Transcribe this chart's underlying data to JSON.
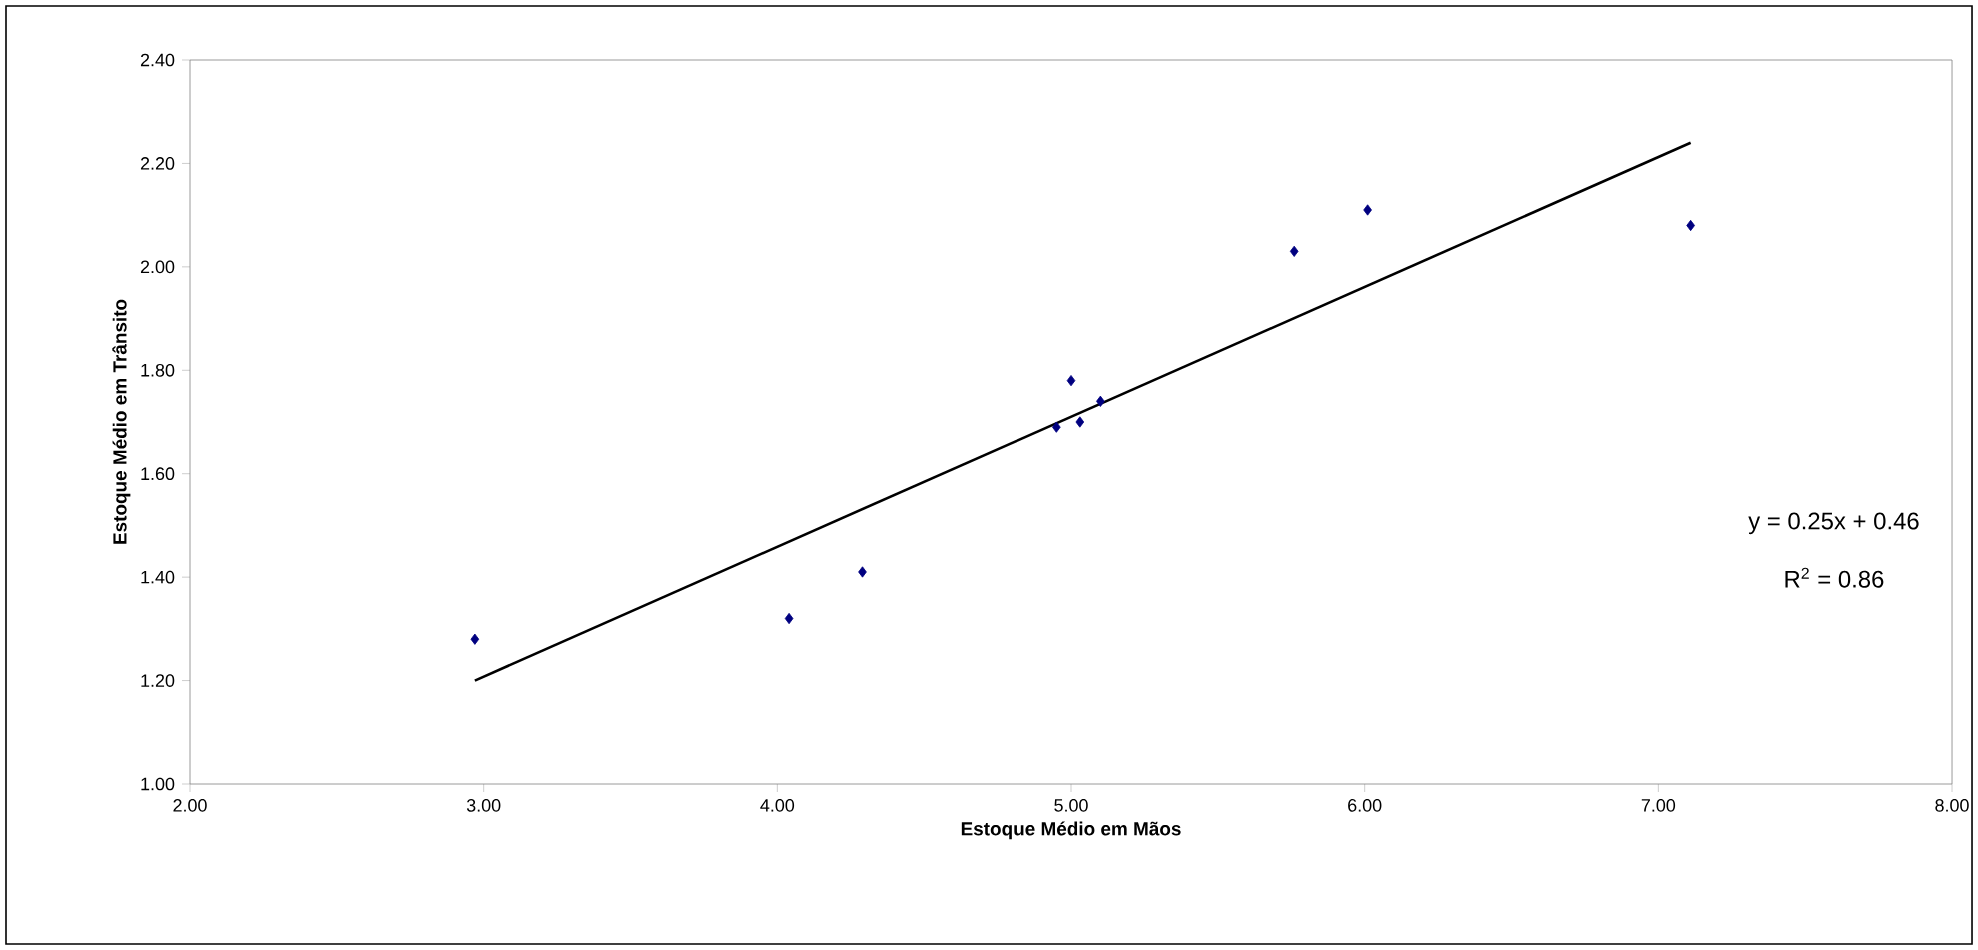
{
  "chart_data": {
    "type": "scatter",
    "xlabel": "Estoque Médio em Mãos",
    "ylabel": "Estoque Médio em Trânsito",
    "xlim": [
      2,
      8
    ],
    "xticks": [
      {
        "value": 2,
        "label": "2.00"
      },
      {
        "value": 3,
        "label": "3.00"
      },
      {
        "value": 4,
        "label": "4.00"
      },
      {
        "value": 5,
        "label": "5.00"
      },
      {
        "value": 6,
        "label": "6.00"
      },
      {
        "value": 7,
        "label": "7.00"
      },
      {
        "value": 8,
        "label": "8.00"
      }
    ],
    "ylim": [
      1,
      2.4
    ],
    "yticks": [
      {
        "value": 1,
        "label": "1.00"
      },
      {
        "value": 1.2,
        "label": "1.20"
      },
      {
        "value": 1.4,
        "label": "1.40"
      },
      {
        "value": 1.6,
        "label": "1.60"
      },
      {
        "value": 1.8,
        "label": "1.80"
      },
      {
        "value": 2.0,
        "label": "2.00"
      },
      {
        "value": 2.2,
        "label": "2.20"
      },
      {
        "value": 2.4,
        "label": "2.40"
      }
    ],
    "grid": false,
    "series": [
      {
        "marker": "diamond",
        "color": "#000080",
        "x": [
          2.97,
          4.04,
          4.29,
          4.95,
          5.0,
          5.03,
          5.1,
          5.76,
          6.01,
          7.11
        ],
        "values": [
          1.28,
          1.32,
          1.41,
          1.69,
          1.78,
          1.7,
          1.74,
          2.03,
          2.11,
          2.08
        ]
      },
      {
        "type": "line",
        "color": "#000000",
        "x": [
          2.97,
          7.11
        ],
        "values": [
          1.2,
          2.24
        ]
      }
    ],
    "annotations": [
      "y = 0.25x + 0.46",
      "R$^{2}$ = 0.86"
    ]
  }
}
